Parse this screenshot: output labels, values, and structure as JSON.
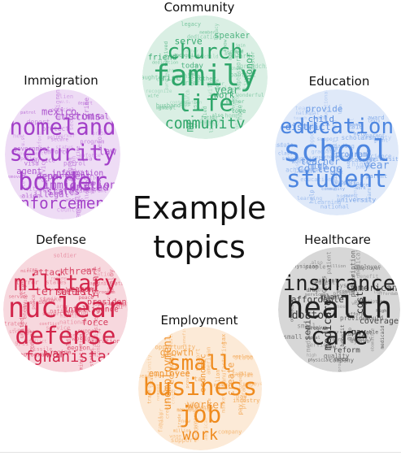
{
  "center_title": {
    "line1": "Example",
    "line2": "topics"
  },
  "topics": [
    {
      "key": "community",
      "title": "Community",
      "color": "#2fa66a",
      "big": [
        "family",
        "life",
        "church",
        "community"
      ],
      "mid": [
        "year",
        "honor",
        "speaker",
        "friend",
        "today",
        "mr.",
        "serve",
        "work",
        "rise"
      ],
      "small": [
        "child",
        "mrs.",
        "wife",
        "father",
        "service",
        "member",
        "know",
        "grandchild",
        "husband",
        "baptist",
        "home",
        "live",
        "church",
        "mother",
        "recognize",
        "born",
        "daughter",
        "award",
        "great",
        "join",
        "also",
        "memory",
        "died",
        "wonderful",
        "love",
        "pastor",
        "contribution",
        "legacy",
        "dedication",
        "world",
        "age",
        "son",
        "survived"
      ]
    },
    {
      "key": "immigration",
      "title": "Immigration",
      "color": "#a23fc8",
      "big": [
        "security",
        "border",
        "homeland",
        "enforcement"
      ],
      "mid": [
        "immigration",
        "law",
        "department",
        "illegal",
        "criminal",
        "united",
        "mexico",
        "states",
        "agent",
        "information",
        "customs"
      ],
      "small": [
        "secure",
        "immigrant",
        "alien",
        "patrol",
        "protect",
        "government",
        "visa",
        "country",
        "federal",
        "program",
        "detention",
        "deport",
        "official",
        "status",
        "citizen",
        "u.s.",
        "service",
        "ice",
        "enforce",
        "action",
        "removal",
        "worker",
        "reform",
        "fence",
        "new",
        "policy",
        "illegally",
        "crime"
      ]
    },
    {
      "key": "education",
      "title": "Education",
      "color": "#4d86e0",
      "big": [
        "school",
        "student",
        "education"
      ],
      "mid": [
        "college",
        "teacher",
        "child",
        "high",
        "program",
        "year",
        "district",
        "provide"
      ],
      "small": [
        "parent",
        "university",
        "learning",
        "state",
        "graduate",
        "grant",
        "public",
        "educational",
        "2010",
        "help",
        "work",
        "academic",
        "learn",
        "opportunity",
        "community",
        "class",
        "achievement",
        "scholarship",
        "teach",
        "support",
        "award",
        "senior",
        "national",
        "career",
        "skill",
        "math",
        "science",
        "reading",
        "loan",
        "higher"
      ]
    },
    {
      "key": "defense",
      "title": "Defense",
      "color": "#d2254a",
      "big": [
        "nuclear",
        "defense",
        "military",
        "afghanistan"
      ],
      "mid": [
        "war",
        "iran",
        "attack",
        "security",
        "intelligence",
        "terrorist",
        "threat",
        "force",
        "president",
        "weapon"
      ],
      "small": [
        "national",
        "iraq",
        "administration",
        "troop",
        "missile",
        "9/11",
        "states",
        "region",
        "army",
        "enemy",
        "mission",
        "strategy",
        "strike",
        "nation",
        "terror",
        "support",
        "combat",
        "united",
        "soldier",
        "service",
        "deploy",
        "ally",
        "program",
        "regime",
        "operation",
        "israel",
        "world",
        "peace",
        "conflict"
      ]
    },
    {
      "key": "healthcare",
      "title": "Healthcare",
      "color": "#222222",
      "big": [
        "health",
        "care",
        "insurance"
      ],
      "mid": [
        "medicare",
        "cost",
        "senior",
        "coverage",
        "reform",
        "doctor",
        "americans",
        "affordable",
        "pay",
        "plan"
      ],
      "small": [
        "medical",
        "medicaid",
        "obamacare",
        "repeal",
        "people",
        "million",
        "company",
        "patient",
        "physician",
        "access",
        "system",
        "benefit",
        "law",
        "hospital",
        "provider",
        "premium",
        "high",
        "would",
        "employer",
        "small",
        "quality",
        "affordable",
        "afford",
        "service",
        "program",
        "need",
        "also",
        "prescription",
        "drug"
      ]
    },
    {
      "key": "employment",
      "title": "Employment",
      "color": "#ef8b1e",
      "big": [
        "business",
        "job",
        "small",
        "work"
      ],
      "mid": [
        "worker",
        "create",
        "employee",
        "economic",
        "economy",
        "unemployment",
        "growth"
      ],
      "small": [
        "provide",
        "benefit",
        "pay",
        "american",
        "private",
        "sector",
        "million",
        "state",
        "industry",
        "tax",
        "company",
        "program",
        "wage",
        "labor",
        "employer",
        "trade",
        "manufacturing",
        "new",
        "hire",
        "local",
        "family",
        "market",
        "support",
        "credit",
        "opportunity",
        "need"
      ]
    }
  ]
}
